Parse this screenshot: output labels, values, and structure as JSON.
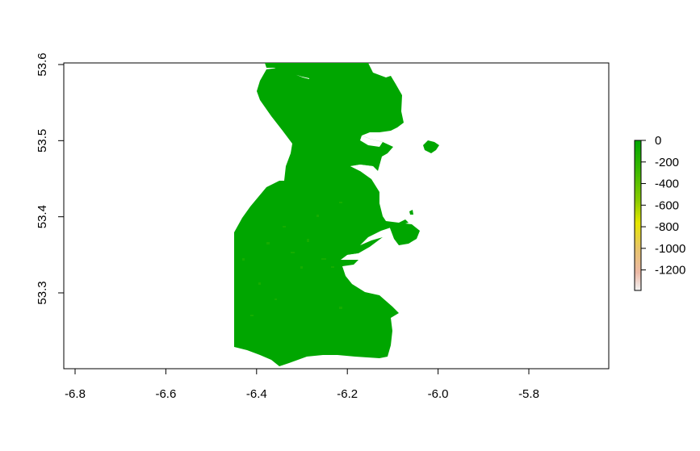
{
  "map": {
    "x_ticks": [
      "-6.8",
      "-6.6",
      "-6.4",
      "-6.2",
      "-6.0",
      "-5.8"
    ],
    "y_ticks": [
      "53.3",
      "53.4",
      "53.5",
      "53.6"
    ],
    "land_color": "#00A600",
    "legend": {
      "ticks": [
        "0",
        "-200",
        "-400",
        "-600",
        "-800",
        "-1000",
        "-1200"
      ],
      "gradient_colors": [
        "#00A600",
        "#3CB900",
        "#8ACB00",
        "#E6E600",
        "#E8C46A",
        "#ECB9A6",
        "#F2F2F2"
      ]
    }
  }
}
